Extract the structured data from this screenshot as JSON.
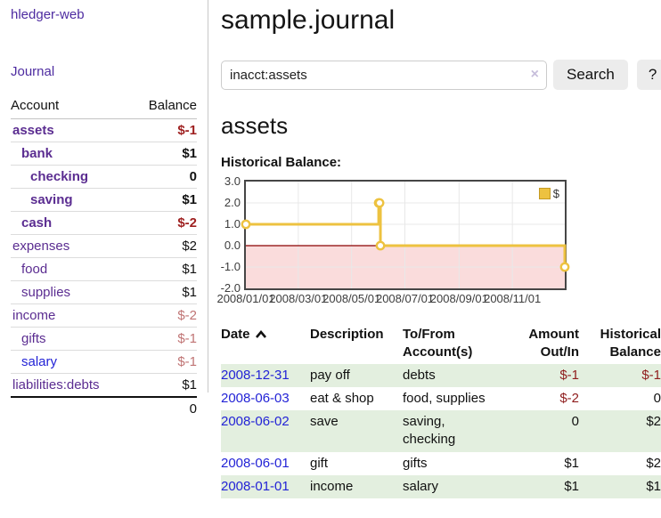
{
  "app": {
    "brand": "hledger-web",
    "nav_journal": "Journal"
  },
  "sidebar": {
    "table": {
      "col_account": "Account",
      "col_balance": "Balance",
      "accounts": [
        {
          "name": "assets",
          "depth": 1,
          "bold": true,
          "balance": "$-1",
          "neg": "strong"
        },
        {
          "name": "bank",
          "depth": 2,
          "bold": true,
          "balance": "$1"
        },
        {
          "name": "checking",
          "depth": 3,
          "bold": true,
          "balance": "0"
        },
        {
          "name": "saving",
          "depth": 3,
          "bold": true,
          "balance": "$1"
        },
        {
          "name": "cash",
          "depth": 2,
          "bold": true,
          "balance": "$-2",
          "neg": "strong"
        },
        {
          "name": "expenses",
          "depth": 1,
          "bold": false,
          "balance": "$2"
        },
        {
          "name": "food",
          "depth": 2,
          "bold": false,
          "balance": "$1"
        },
        {
          "name": "supplies",
          "depth": 2,
          "bold": false,
          "balance": "$1"
        },
        {
          "name": "income",
          "depth": 1,
          "bold": false,
          "balance": "$-2",
          "neg": "weak"
        },
        {
          "name": "gifts",
          "depth": 2,
          "bold": false,
          "balance": "$-1",
          "neg": "weak"
        },
        {
          "name": "salary",
          "depth": 2,
          "bold": false,
          "balance": "$-1",
          "neg": "weak",
          "link_state": "unvisited"
        },
        {
          "name": "liabilities:debts",
          "depth": 1,
          "bold": false,
          "balance": "$1"
        }
      ],
      "total": "0"
    }
  },
  "header": {
    "title": "sample.journal"
  },
  "search": {
    "query": "inacct:assets",
    "clear_icon": "×",
    "button_label": "Search",
    "help_label": "?"
  },
  "account_page": {
    "heading": "assets",
    "chart_title": "Historical Balance:"
  },
  "chart_data": {
    "type": "line",
    "title": "Historical Balance of assets",
    "steps": true,
    "x_domain": [
      "2008-01-01",
      "2008-12-31"
    ],
    "ylim": [
      -2,
      3
    ],
    "series": [
      {
        "name": "$",
        "color": "#edc240",
        "points": [
          {
            "date": "2008-01-01",
            "value": 1
          },
          {
            "date": "2008-06-01",
            "value": 2
          },
          {
            "date": "2008-06-02",
            "value": 2
          },
          {
            "date": "2008-06-03",
            "value": 0
          },
          {
            "date": "2008-12-31",
            "value": -1
          }
        ]
      }
    ],
    "x_ticks": [
      {
        "date": "2008-01-01",
        "label": "2008/01/01"
      },
      {
        "date": "2008-03-01",
        "label": "2008/03/01"
      },
      {
        "date": "2008-05-01",
        "label": "2008/05/01"
      },
      {
        "date": "2008-07-01",
        "label": "2008/07/01"
      },
      {
        "date": "2008-09-01",
        "label": "2008/09/01"
      },
      {
        "date": "2008-11-01",
        "label": "2008/11/01"
      }
    ],
    "y_ticks": [
      {
        "value": 3,
        "label": "3.0"
      },
      {
        "value": 2,
        "label": "2.0"
      },
      {
        "value": 1,
        "label": "1.0"
      },
      {
        "value": 0,
        "label": "0.0"
      },
      {
        "value": -1,
        "label": "-1.0"
      },
      {
        "value": -2,
        "label": "-2.0"
      }
    ],
    "legend": {
      "label": "$",
      "position": "top-right"
    },
    "grid": true,
    "colors": {
      "series": "#edc240",
      "marker_fill": "#ffffff",
      "negative_zone": "#fadcdc",
      "zero_line": "#8b0000",
      "gridline": "#e8e8e8",
      "border": "#464646"
    }
  },
  "register": {
    "columns": {
      "date": "Date",
      "sort_icon": "chevron-up",
      "description": "Description",
      "tofrom": "To/From Account(s)",
      "amount": "Amount Out/In",
      "balance": "Historical Balance"
    },
    "rows": [
      {
        "date": "2008-12-31",
        "description": "pay off",
        "tofrom": "debts",
        "amount": "$-1",
        "balance": "$-1",
        "amount_neg": true,
        "balance_neg": true,
        "shaded": true
      },
      {
        "date": "2008-06-03",
        "description": "eat & shop",
        "tofrom": "food, supplies",
        "amount": "$-2",
        "balance": "0",
        "amount_neg": true,
        "balance_neg": false,
        "shaded": false
      },
      {
        "date": "2008-06-02",
        "description": "save",
        "tofrom": "saving,\nchecking",
        "amount": "0",
        "balance": "$2",
        "amount_neg": false,
        "balance_neg": false,
        "shaded": true
      },
      {
        "date": "2008-06-01",
        "description": "gift",
        "tofrom": "gifts",
        "amount": "$1",
        "balance": "$2",
        "amount_neg": false,
        "balance_neg": false,
        "shaded": false
      },
      {
        "date": "2008-01-01",
        "description": "income",
        "tofrom": "salary",
        "amount": "$1",
        "balance": "$1",
        "amount_neg": false,
        "balance_neg": false,
        "shaded": true
      }
    ]
  }
}
